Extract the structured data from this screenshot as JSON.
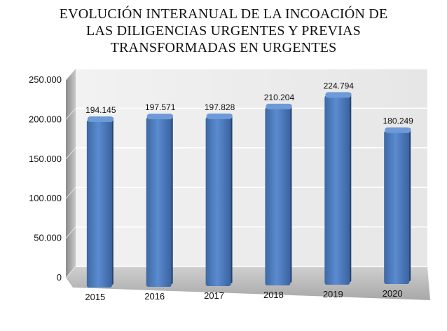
{
  "chart_data": {
    "type": "bar",
    "title_lines": [
      "EVOLUCIÓN INTERANUAL DE LA INCOACIÓN DE",
      "LAS DILIGENCIAS URGENTES Y PREVIAS",
      "TRANSFORMADAS EN URGENTES"
    ],
    "categories": [
      "2015",
      "2016",
      "2017",
      "2018",
      "2019",
      "2020"
    ],
    "values": [
      194145,
      197571,
      197828,
      210204,
      224794,
      180249
    ],
    "value_labels": [
      "194.145",
      "197.571",
      "197.828",
      "210.204",
      "224.794",
      "180.249"
    ],
    "y_ticks": [
      "0",
      "50.000",
      "100.000",
      "150.000",
      "200.000",
      "250.000"
    ],
    "ylim": [
      0,
      250000
    ],
    "grid": true,
    "bar_color": "#4f81bd"
  }
}
